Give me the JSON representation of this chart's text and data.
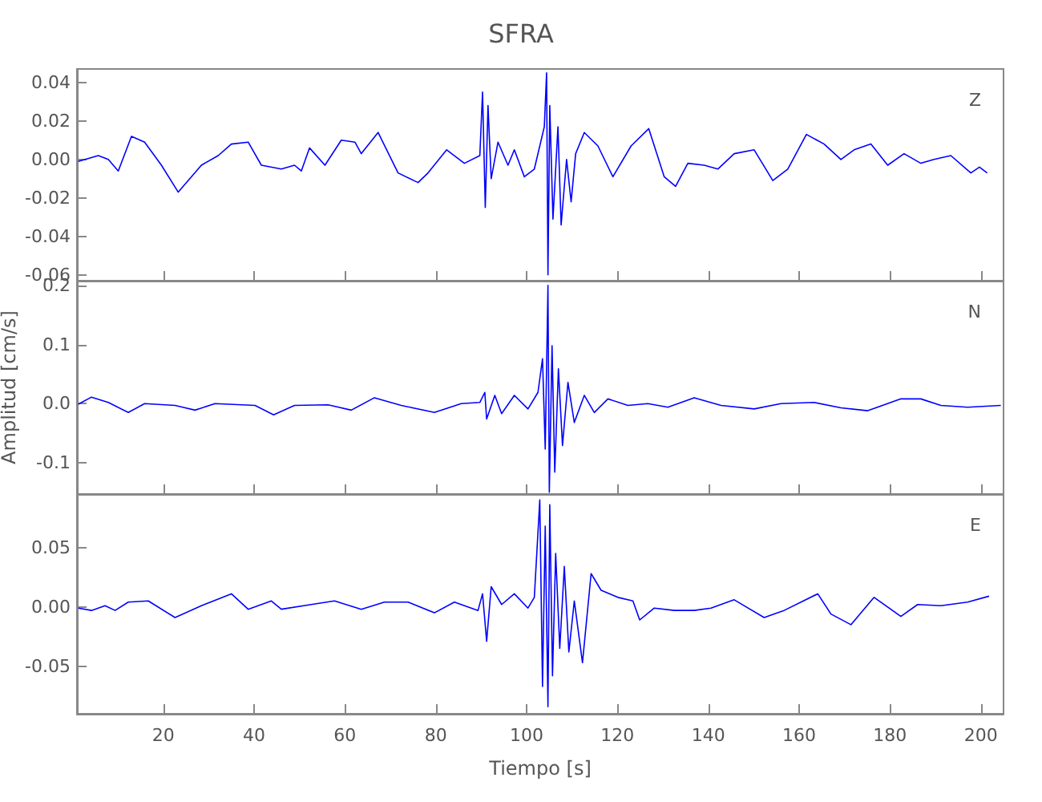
{
  "chart_data": [
    {
      "type": "line",
      "title": "SFRA",
      "annotations": [
        "Z"
      ],
      "xlim": [
        1,
        205
      ],
      "xticks": [
        20,
        40,
        60,
        80,
        100,
        120,
        140,
        160,
        180,
        200
      ],
      "ylim": [
        -0.063,
        0.047
      ],
      "yticks": [
        {
          "value": -0.06,
          "label": "-0.06"
        },
        {
          "value": -0.04,
          "label": "-0.04"
        },
        {
          "value": -0.02,
          "label": "-0.02"
        },
        {
          "value": 0,
          "label": "0.00"
        },
        {
          "value": 0.02,
          "label": "0.02"
        },
        {
          "value": 0.04,
          "label": "0.04"
        }
      ],
      "tick_labels": "y",
      "grid": false,
      "marker": "none",
      "line_style": "solid",
      "series": [
        {
          "color": "#0000ff",
          "x": [
            1.3,
            5.7,
            7.9,
            10.1,
            13.0,
            15.9,
            19.6,
            23.3,
            28.4,
            32.1,
            35.0,
            38.7,
            41.6,
            46.0,
            48.9,
            50.4,
            52.2,
            55.6,
            59.2,
            62.2,
            63.6,
            67.3,
            71.7,
            76.1,
            78.3,
            82.4,
            86.3,
            89.7,
            90.3,
            90.9,
            91.5,
            92.2,
            93.7,
            95.9,
            97.3,
            99.5,
            101.7,
            103.9,
            104.4,
            104.7,
            105.1,
            105.8,
            106.9,
            107.6,
            108.8,
            109.8,
            110.8,
            112.7,
            115.7,
            119.0,
            123.0,
            126.9,
            130.3,
            132.8,
            135.5,
            139.1,
            142.1,
            145.7,
            150.1,
            154.2,
            157.5,
            161.6,
            165.5,
            169.2,
            172.1,
            175.8,
            179.5,
            183.1,
            186.8,
            189.7,
            193.4,
            197.8,
            199.7,
            201.4
          ],
          "values": [
            -0.001,
            0.002,
            0,
            -0.006,
            0.012,
            0.009,
            -0.003,
            -0.017,
            -0.003,
            0.002,
            0.008,
            0.009,
            -0.003,
            -0.005,
            -0.003,
            -0.006,
            0.006,
            -0.003,
            0.01,
            0.009,
            0.003,
            0.014,
            -0.007,
            -0.012,
            -0.007,
            0.005,
            -0.002,
            0.002,
            0.035,
            -0.025,
            0.028,
            -0.01,
            0.009,
            -0.003,
            0.005,
            -0.009,
            -0.005,
            0.017,
            0.045,
            -0.06,
            0.028,
            -0.031,
            0.017,
            -0.034,
            0,
            -0.022,
            0.003,
            0.014,
            0.007,
            -0.009,
            0.007,
            0.016,
            -0.009,
            -0.014,
            -0.002,
            -0.003,
            -0.005,
            0.003,
            0.005,
            -0.011,
            -0.005,
            0.013,
            0.008,
            0,
            0.005,
            0.008,
            -0.003,
            0.003,
            -0.002,
            0,
            0.002,
            -0.007,
            -0.004,
            -0.007
          ]
        }
      ]
    },
    {
      "type": "line",
      "ylabel": "Amplitud [cm/s]",
      "annotations": [
        "N"
      ],
      "xlim": [
        1,
        205
      ],
      "xticks": [
        20,
        40,
        60,
        80,
        100,
        120,
        140,
        160,
        180,
        200
      ],
      "ylim": [
        -0.153,
        0.208
      ],
      "yticks": [
        {
          "value": -0.1,
          "label": "-0.1"
        },
        {
          "value": 0,
          "label": "0.0"
        },
        {
          "value": 0.1,
          "label": "0.1"
        },
        {
          "value": 0.2,
          "label": "0.2"
        }
      ],
      "tick_labels": "y",
      "grid": false,
      "marker": "none",
      "line_style": "solid",
      "series": [
        {
          "color": "#0000ff",
          "x": [
            1.3,
            4.2,
            7.9,
            12.3,
            15.9,
            22.6,
            27.0,
            31.4,
            40.2,
            44.3,
            48.9,
            56.3,
            61.4,
            66.5,
            72.4,
            79.7,
            85.6,
            89.7,
            90.8,
            91.2,
            93.0,
            94.5,
            97.3,
            100.3,
            102.5,
            103.5,
            104.1,
            104.7,
            105.0,
            105.6,
            106.2,
            107.0,
            107.9,
            109.1,
            110.5,
            112.7,
            114.9,
            117.9,
            122.3,
            126.7,
            131.1,
            136.9,
            142.8,
            150.1,
            156.0,
            163.3,
            169.2,
            175.1,
            182.4,
            186.8,
            191.2,
            197.1,
            204.4
          ],
          "values": [
            -0.001,
            0.011,
            0.002,
            -0.015,
            0,
            -0.003,
            -0.011,
            0,
            -0.003,
            -0.019,
            -0.003,
            -0.002,
            -0.011,
            0.01,
            -0.003,
            -0.015,
            0,
            0.002,
            0.019,
            -0.026,
            0.014,
            -0.017,
            0.014,
            -0.009,
            0.019,
            0.076,
            -0.077,
            0.2,
            -0.15,
            0.098,
            -0.116,
            0.059,
            -0.071,
            0.036,
            -0.032,
            0.014,
            -0.015,
            0.008,
            -0.003,
            0,
            -0.006,
            0.01,
            -0.003,
            -0.009,
            0,
            0.002,
            -0.007,
            -0.012,
            0.008,
            0.008,
            -0.003,
            -0.006,
            -0.003
          ]
        }
      ]
    },
    {
      "type": "line",
      "xlabel": "Tiempo [s]",
      "annotations": [
        "E"
      ],
      "xlim": [
        1,
        205
      ],
      "xticks": [
        20,
        40,
        60,
        80,
        100,
        120,
        140,
        160,
        180,
        200
      ],
      "ylim": [
        -0.09,
        0.095
      ],
      "yticks": [
        {
          "value": -0.05,
          "label": "-0.05"
        },
        {
          "value": 0,
          "label": "0.00"
        },
        {
          "value": 0.05,
          "label": "0.05"
        }
      ],
      "grid": false,
      "marker": "none",
      "line_style": "solid",
      "series": [
        {
          "color": "#0000ff",
          "x": [
            1.3,
            4.2,
            7.2,
            9.4,
            12.3,
            16.7,
            22.6,
            28.4,
            35.0,
            38.7,
            43.8,
            46.0,
            52.6,
            57.7,
            63.6,
            68.7,
            73.9,
            79.7,
            84.1,
            89.3,
            90.3,
            91.2,
            92.2,
            94.5,
            97.3,
            100.3,
            101.7,
            102.9,
            103.5,
            104.1,
            104.7,
            105.1,
            105.7,
            106.4,
            107.3,
            108.3,
            109.3,
            110.5,
            112.3,
            114.2,
            116.4,
            120.1,
            123.4,
            124.9,
            128.1,
            132.5,
            136.9,
            140.6,
            145.7,
            152.3,
            156.7,
            164.1,
            167.0,
            171.4,
            176.5,
            182.4,
            186.1,
            191.2,
            197.1,
            201.8
          ],
          "values": [
            -0.001,
            -0.003,
            0.001,
            -0.003,
            0.004,
            0.005,
            -0.009,
            0.001,
            0.011,
            -0.002,
            0.005,
            -0.002,
            0.002,
            0.005,
            -0.002,
            0.004,
            0.004,
            -0.005,
            0.004,
            -0.003,
            0.011,
            -0.029,
            0.017,
            0.002,
            0.011,
            -0.001,
            0.008,
            0.09,
            -0.067,
            0.068,
            -0.084,
            0.086,
            -0.058,
            0.045,
            -0.035,
            0.034,
            -0.038,
            0.005,
            -0.047,
            0.028,
            0.014,
            0.008,
            0.005,
            -0.011,
            -0.001,
            -0.003,
            -0.003,
            -0.001,
            0.006,
            -0.009,
            -0.003,
            0.011,
            -0.006,
            -0.015,
            0.008,
            -0.008,
            0.002,
            0.001,
            0.004,
            0.009
          ]
        }
      ]
    }
  ]
}
